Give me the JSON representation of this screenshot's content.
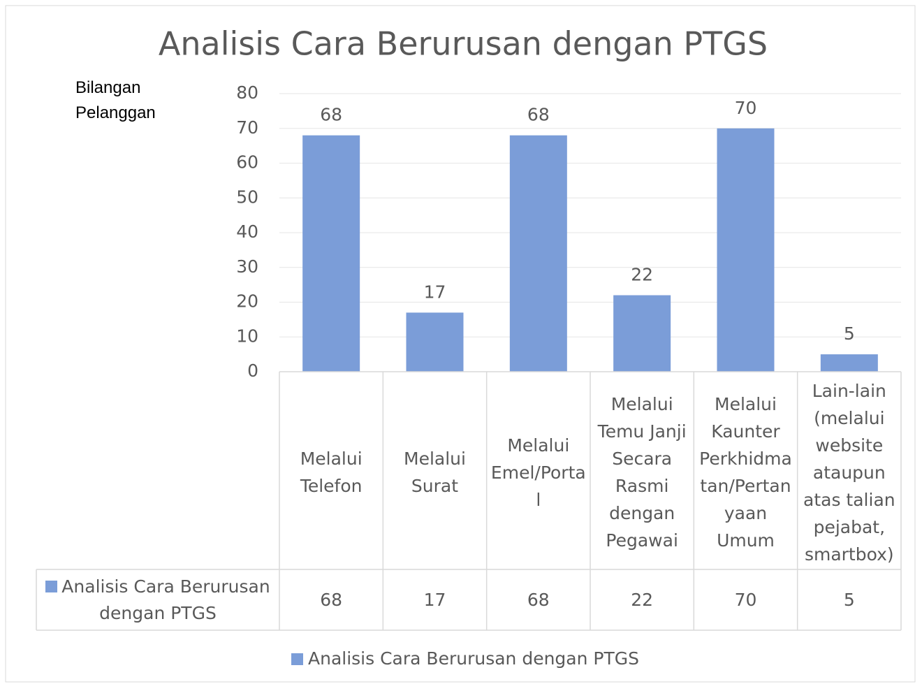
{
  "chart_data": {
    "type": "bar",
    "title": "Analisis Cara Berurusan dengan PTGS",
    "y_label": "Bilangan Pelanggan",
    "categories": [
      "Melalui Telefon",
      "Melalui Surat",
      "Melalui Emel/Portal",
      "Melalui Temu Janji Secara Rasmi dengan Pegawai",
      "Melalui Kaunter Perkhidmatan/Pertanyaan Umum",
      "Lain-lain (melalui website ataupun atas talian pejabat, smartbox)"
    ],
    "series": [
      {
        "name": "Analisis Cara Berurusan dengan PTGS",
        "color": "#7b9dd8",
        "values": [
          68,
          17,
          68,
          22,
          70,
          5
        ]
      }
    ],
    "ylim": [
      0,
      80
    ],
    "yticks": [
      0,
      10,
      20,
      30,
      40,
      50,
      60,
      70,
      80
    ],
    "grid": true,
    "data_table": true,
    "legend": "bottom"
  }
}
